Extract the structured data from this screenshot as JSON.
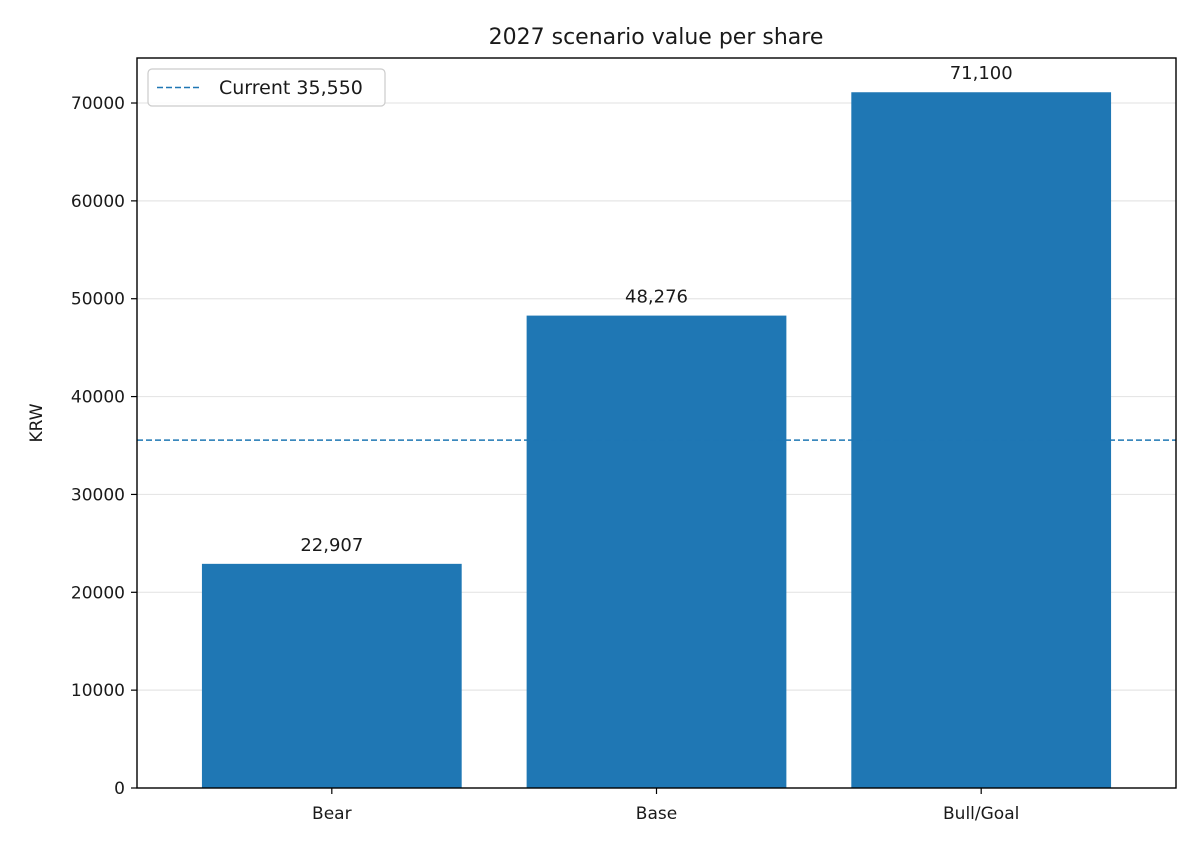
{
  "chart_data": {
    "type": "bar",
    "title": "2027 scenario value per share",
    "xlabel": "",
    "ylabel": "KRW",
    "categories": [
      "Bear",
      "Base",
      "Bull/Goal"
    ],
    "values": [
      22907,
      48276,
      71100
    ],
    "value_labels": [
      "22,907",
      "48,276",
      "71,100"
    ],
    "ylim": [
      0,
      74600
    ],
    "yticks": [
      0,
      10000,
      20000,
      30000,
      40000,
      50000,
      60000,
      70000
    ],
    "ytick_labels": [
      "0",
      "10000",
      "20000",
      "30000",
      "40000",
      "50000",
      "60000",
      "70000"
    ],
    "reference_line": {
      "label": "Current 35,550",
      "value": 35550,
      "style": "dashed"
    },
    "grid": "y",
    "legend_position": "upper-left",
    "colors": {
      "bar": "#1f77b4",
      "reference": "#1f77b4",
      "grid": "#e6e6e6"
    }
  }
}
